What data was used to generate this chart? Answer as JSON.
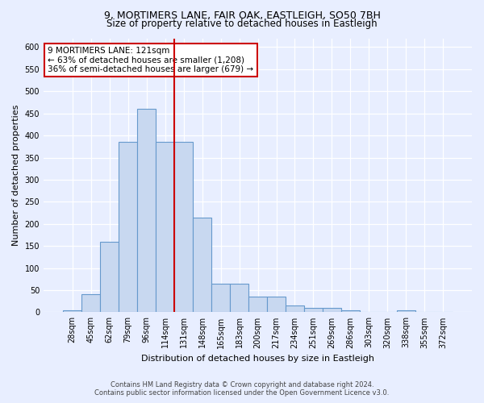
{
  "title_line1": "9, MORTIMERS LANE, FAIR OAK, EASTLEIGH, SO50 7BH",
  "title_line2": "Size of property relative to detached houses in Eastleigh",
  "xlabel": "Distribution of detached houses by size in Eastleigh",
  "ylabel": "Number of detached properties",
  "categories": [
    "28sqm",
    "45sqm",
    "62sqm",
    "79sqm",
    "96sqm",
    "114sqm",
    "131sqm",
    "148sqm",
    "165sqm",
    "183sqm",
    "200sqm",
    "217sqm",
    "234sqm",
    "251sqm",
    "269sqm",
    "286sqm",
    "303sqm",
    "320sqm",
    "338sqm",
    "355sqm",
    "372sqm"
  ],
  "values": [
    5,
    40,
    160,
    385,
    460,
    385,
    385,
    215,
    65,
    65,
    35,
    35,
    15,
    10,
    10,
    5,
    0,
    0,
    5,
    0,
    0
  ],
  "bar_color": "#c8d8f0",
  "bar_edge_color": "#6699cc",
  "vertical_line_x": 6.0,
  "vline_color": "#cc0000",
  "annotation_text": "9 MORTIMERS LANE: 121sqm\n← 63% of detached houses are smaller (1,208)\n36% of semi-detached houses are larger (679) →",
  "annotation_box_facecolor": "white",
  "annotation_box_edgecolor": "#cc0000",
  "ylim": [
    0,
    620
  ],
  "yticks": [
    0,
    50,
    100,
    150,
    200,
    250,
    300,
    350,
    400,
    450,
    500,
    550,
    600
  ],
  "footer_line1": "Contains HM Land Registry data © Crown copyright and database right 2024.",
  "footer_line2": "Contains public sector information licensed under the Open Government Licence v3.0.",
  "bg_color": "#e8eeff",
  "plot_bg_color": "#e8eeff",
  "grid_color": "#ffffff",
  "title1_fontsize": 9,
  "title2_fontsize": 8.5,
  "xlabel_fontsize": 8,
  "ylabel_fontsize": 8,
  "tick_fontsize": 7,
  "footer_fontsize": 6,
  "annot_fontsize": 7.5
}
